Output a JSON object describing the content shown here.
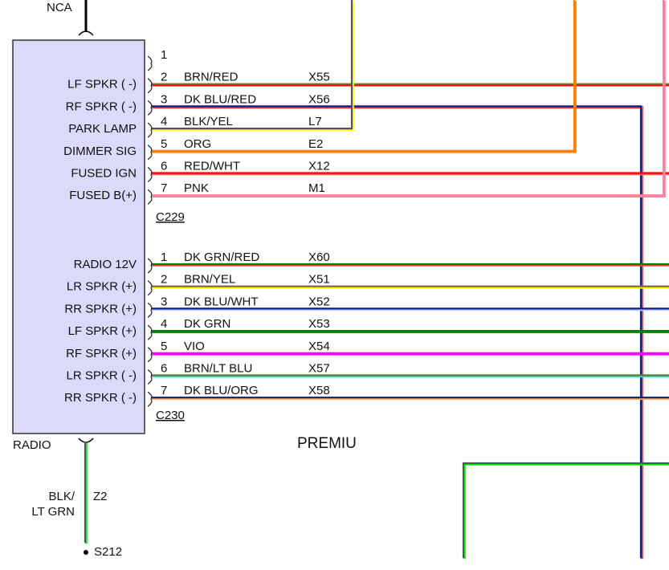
{
  "component": {
    "name": "RADIO",
    "fill_color": "#dadafa",
    "top_wire_label": "NCA",
    "ground": {
      "color_label_1": "BLK/",
      "color_label_2": "LT GRN",
      "circuit": "Z2",
      "splice": "S212",
      "primary": "#555555",
      "tracer": "#00ff00"
    }
  },
  "page_label": "PREMIU",
  "connectors": [
    {
      "name": "C229",
      "pins": [
        {
          "pin": "1",
          "function": "",
          "color": "",
          "circuit": ""
        },
        {
          "pin": "2",
          "function": "LF SPKR ( -)",
          "color": "BRN/RED",
          "circuit": "X55",
          "primary": "#7a6a2a",
          "tracer": "#ff0000"
        },
        {
          "pin": "3",
          "function": "RF SPKR ( -)",
          "color": "DK BLU/RED",
          "circuit": "X56",
          "primary": "#00218c",
          "tracer": "#ff3030"
        },
        {
          "pin": "4",
          "function": "PARK LAMP",
          "color": "BLK/YEL",
          "circuit": "L7",
          "primary": "#555555",
          "tracer": "#ffff00"
        },
        {
          "pin": "5",
          "function": "DIMMER SIG",
          "color": "ORG",
          "circuit": "E2",
          "primary": "#ff8000",
          "tracer": "#ff8000"
        },
        {
          "pin": "6",
          "function": "FUSED IGN",
          "color": "RED/WHT",
          "circuit": "X12",
          "primary": "#ff0000",
          "tracer": "#ff6060"
        },
        {
          "pin": "7",
          "function": "FUSED B(+)",
          "color": "PNK",
          "circuit": "M1",
          "primary": "#ff8099",
          "tracer": "#ff8099"
        }
      ]
    },
    {
      "name": "C230",
      "pins": [
        {
          "pin": "1",
          "function": "RADIO 12V",
          "color": "DK GRN/RED",
          "circuit": "X60",
          "primary": "#008000",
          "tracer": "#ff4040"
        },
        {
          "pin": "2",
          "function": "LR SPKR (+)",
          "color": "BRN/YEL",
          "circuit": "X51",
          "primary": "#7a6a2a",
          "tracer": "#ffff00"
        },
        {
          "pin": "3",
          "function": "RR SPKR (+)",
          "color": "DK BLU/WHT",
          "circuit": "X52",
          "primary": "#00218c",
          "tracer": "#c8c8ff"
        },
        {
          "pin": "4",
          "function": "LF SPKR (+)",
          "color": "DK GRN",
          "circuit": "X53",
          "primary": "#008000",
          "tracer": "#008000"
        },
        {
          "pin": "5",
          "function": "RF SPKR (+)",
          "color": "VIO",
          "circuit": "X54",
          "primary": "#ff00ff",
          "tracer": "#ff00ff"
        },
        {
          "pin": "6",
          "function": "LR SPKR ( -)",
          "color": "BRN/LT BLU",
          "circuit": "X57",
          "primary": "#7a6a2a",
          "tracer": "#00ffff"
        },
        {
          "pin": "7",
          "function": "RR SPKR ( -)",
          "color": "DK BLU/ORG",
          "circuit": "X58",
          "primary": "#00218c",
          "tracer": "#ffb060"
        }
      ]
    }
  ],
  "extra_wire": {
    "primary": "#555555",
    "tracer": "#00ff00"
  }
}
